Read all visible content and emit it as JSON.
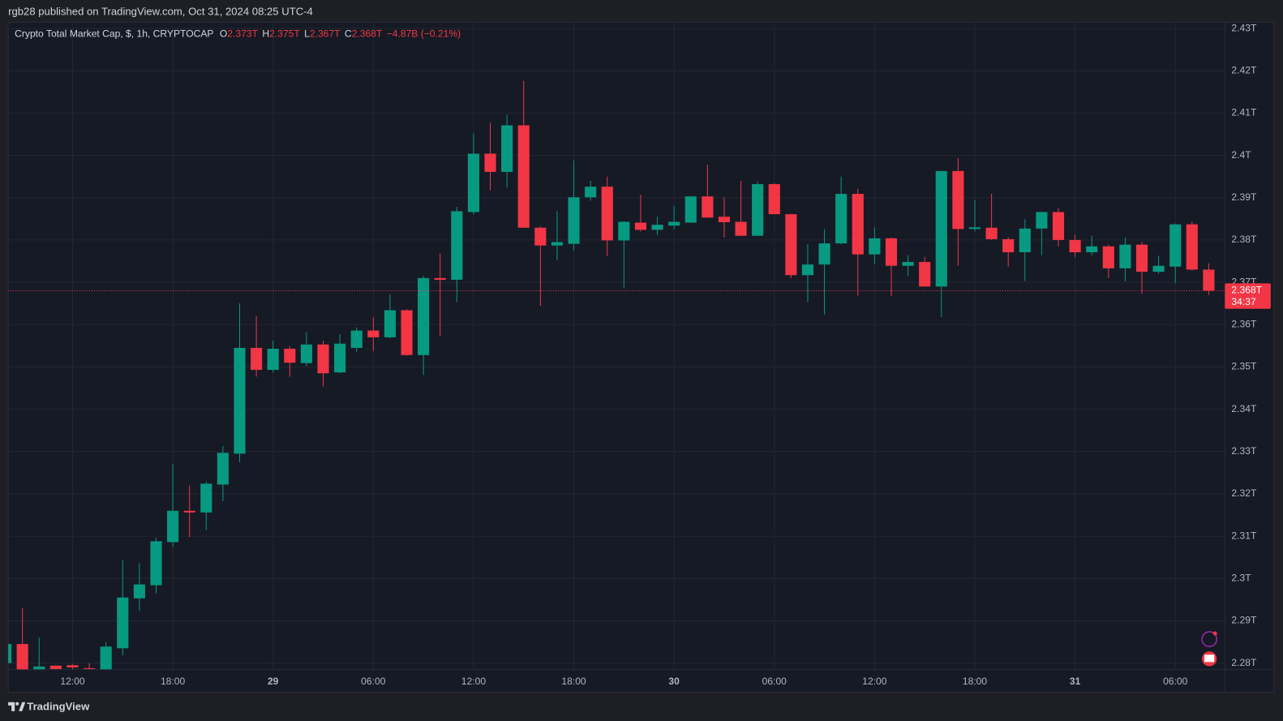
{
  "attribution": "rgb28 published on TradingView.com, Oct 31, 2024 08:25 UTC-4",
  "brand": "TradingView",
  "chart_data": {
    "type": "candlestick",
    "symbol": "Crypto Total Market Cap, $, 1h, CRYPTOCAP",
    "legend_values": [
      {
        "key": "O",
        "value": "2.373T"
      },
      {
        "key": "H",
        "value": "2.375T"
      },
      {
        "key": "L",
        "value": "2.367T"
      },
      {
        "key": "C",
        "value": "2.368T"
      }
    ],
    "change": "−4.87B (−0.21%)",
    "up_color": "#089981",
    "down_color": "#f23645",
    "grid": true,
    "categories": [
      null,
      null,
      null,
      null,
      "12:00",
      null,
      null,
      null,
      null,
      null,
      "18:00",
      null,
      null,
      null,
      null,
      null,
      "29",
      null,
      null,
      null,
      null,
      null,
      "06:00",
      null,
      null,
      null,
      null,
      null,
      "12:00",
      null,
      null,
      null,
      null,
      null,
      "18:00",
      null,
      null,
      null,
      null,
      null,
      "30",
      null,
      null,
      null,
      null,
      null,
      "06:00",
      null,
      null,
      null,
      null,
      null,
      "12:00",
      null,
      null,
      null,
      null,
      null,
      "18:00",
      null,
      null,
      null,
      null,
      null,
      "31",
      null,
      null,
      null,
      null,
      null,
      "06:00",
      null,
      null
    ],
    "open": [
      2.28,
      2.2845,
      2.2785,
      2.2794,
      2.2795,
      2.2788,
      2.2785,
      2.2835,
      2.2953,
      2.2984,
      2.3086,
      2.316,
      2.3156,
      2.3222,
      2.3295,
      2.3545,
      2.3493,
      2.3543,
      2.3509,
      2.3553,
      2.3487,
      2.3545,
      2.3586,
      2.357,
      2.3634,
      2.3528,
      2.371,
      2.3706,
      2.3866,
      2.4004,
      2.3961,
      2.4071,
      2.3829,
      2.3787,
      2.3791,
      2.3901,
      2.3926,
      2.3799,
      2.3841,
      2.3824,
      2.3834,
      2.3841,
      2.3903,
      2.3855,
      2.3843,
      2.381,
      2.3932,
      2.3861,
      2.3717,
      2.3742,
      2.3792,
      2.3909,
      2.3766,
      2.3804,
      2.3739,
      2.3748,
      2.369,
      2.3963,
      2.3826,
      2.3829,
      2.3802,
      2.3771,
      2.3827,
      2.3866,
      2.38,
      2.3771,
      2.3785,
      2.3733,
      2.3789,
      2.3725,
      2.3737,
      2.3837,
      2.373
    ],
    "high": [
      2.285,
      2.293,
      2.286,
      2.2795,
      2.2797,
      2.28,
      2.285,
      2.3044,
      2.3036,
      2.3096,
      2.327,
      2.322,
      2.3229,
      2.3313,
      2.365,
      2.362,
      2.3562,
      2.3549,
      2.3582,
      2.3562,
      2.3578,
      2.3593,
      2.3617,
      2.3671,
      2.3636,
      2.3715,
      2.3768,
      2.3878,
      2.4052,
      2.4077,
      2.4096,
      2.4176,
      2.3832,
      2.3868,
      2.3988,
      2.394,
      2.395,
      2.3844,
      2.3907,
      2.3855,
      2.388,
      2.3904,
      2.3978,
      2.3901,
      2.394,
      2.3938,
      2.3934,
      2.3862,
      2.379,
      2.3826,
      2.395,
      2.3921,
      2.383,
      2.3806,
      2.3764,
      2.376,
      2.3963,
      2.3994,
      2.3895,
      2.3909,
      2.3806,
      2.3849,
      2.3867,
      2.3876,
      2.3812,
      2.381,
      2.3789,
      2.3806,
      2.3795,
      2.3763,
      2.3839,
      2.3843,
      2.3745
    ],
    "low": [
      2.2795,
      2.278,
      2.278,
      2.278,
      2.2785,
      2.278,
      2.278,
      2.2819,
      2.2924,
      2.2965,
      2.3075,
      2.3098,
      2.3115,
      2.3183,
      2.3275,
      2.3477,
      2.3487,
      2.3477,
      2.3502,
      2.3454,
      2.3485,
      2.3536,
      2.3537,
      2.3568,
      2.3527,
      2.3481,
      2.3572,
      2.3653,
      2.3861,
      2.3917,
      2.3924,
      2.3829,
      2.3644,
      2.3752,
      2.3775,
      2.3893,
      2.3762,
      2.3686,
      2.382,
      2.3812,
      2.3825,
      2.3841,
      2.3853,
      2.3806,
      2.381,
      2.381,
      2.3861,
      2.371,
      2.3653,
      2.3624,
      2.379,
      2.3668,
      2.3743,
      2.3667,
      2.3715,
      2.369,
      2.3618,
      2.3739,
      2.382,
      2.38,
      2.3737,
      2.3703,
      2.3764,
      2.3785,
      2.376,
      2.3764,
      2.371,
      2.3702,
      2.3673,
      2.372,
      2.3698,
      2.3728,
      2.367
    ],
    "close": [
      2.2845,
      2.2785,
      2.2792,
      2.2786,
      2.279,
      2.2786,
      2.2839,
      2.2955,
      2.2986,
      2.3088,
      2.316,
      2.3156,
      2.3224,
      2.3297,
      2.3545,
      2.3493,
      2.3543,
      2.351,
      2.3553,
      2.3485,
      2.3555,
      2.3586,
      2.357,
      2.3634,
      2.3528,
      2.371,
      2.3706,
      2.3868,
      2.4004,
      2.3961,
      2.4071,
      2.3829,
      2.3787,
      2.3795,
      2.3901,
      2.3926,
      2.3799,
      2.3843,
      2.3824,
      2.3836,
      2.3843,
      2.3903,
      2.3853,
      2.3842,
      2.381,
      2.3932,
      2.3861,
      2.3717,
      2.3742,
      2.3792,
      2.3909,
      2.3766,
      2.3804,
      2.3739,
      2.3748,
      2.369,
      2.3963,
      2.3826,
      2.383,
      2.3802,
      2.3771,
      2.3827,
      2.3866,
      2.38,
      2.3771,
      2.3785,
      2.3733,
      2.3789,
      2.3725,
      2.3739,
      2.3837,
      2.373,
      2.368
    ],
    "ylim": [
      2.2785,
      2.4315
    ],
    "yticks": [
      {
        "value": 2.28,
        "label": "2.28T"
      },
      {
        "value": 2.29,
        "label": "2.29T"
      },
      {
        "value": 2.3,
        "label": "2.3T"
      },
      {
        "value": 2.31,
        "label": "2.31T"
      },
      {
        "value": 2.32,
        "label": "2.32T"
      },
      {
        "value": 2.33,
        "label": "2.33T"
      },
      {
        "value": 2.34,
        "label": "2.34T"
      },
      {
        "value": 2.35,
        "label": "2.35T"
      },
      {
        "value": 2.36,
        "label": "2.36T"
      },
      {
        "value": 2.37,
        "label": "2.37T"
      },
      {
        "value": 2.38,
        "label": "2.38T"
      },
      {
        "value": 2.39,
        "label": "2.39T"
      },
      {
        "value": 2.4,
        "label": "2.4T"
      },
      {
        "value": 2.41,
        "label": "2.41T"
      },
      {
        "value": 2.42,
        "label": "2.42T"
      },
      {
        "value": 2.43,
        "label": "2.43T"
      }
    ],
    "last_price": {
      "value": 2.368,
      "label": "2.368T"
    },
    "countdown": "34:37"
  }
}
